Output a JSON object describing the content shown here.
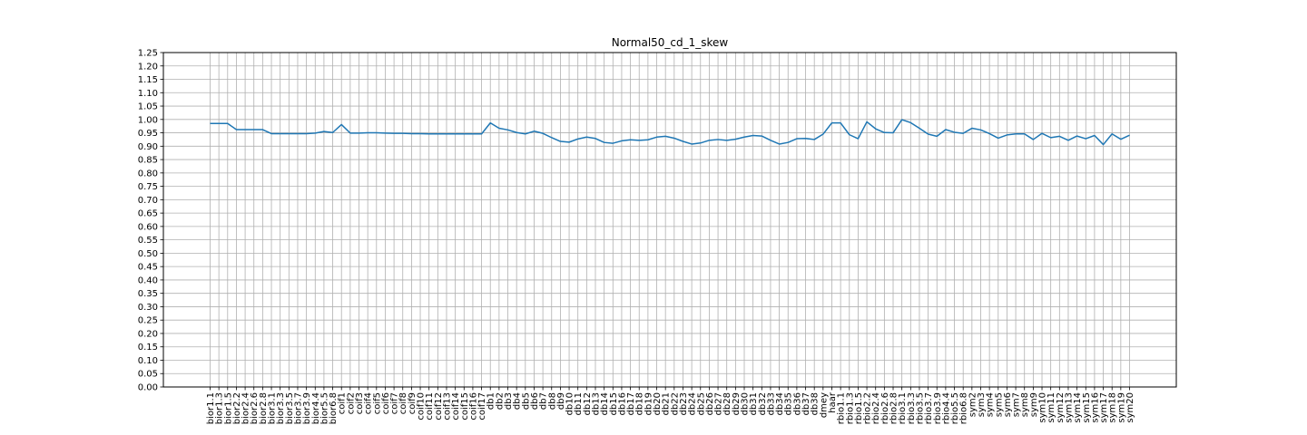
{
  "chart_data": {
    "type": "line",
    "title": "Normal50_cd_1_skew",
    "xlabel": "",
    "ylabel": "",
    "ylim": [
      0,
      1.25
    ],
    "yticks": [
      "0.00",
      "0.05",
      "0.10",
      "0.15",
      "0.20",
      "0.25",
      "0.30",
      "0.35",
      "0.40",
      "0.45",
      "0.50",
      "0.55",
      "0.60",
      "0.65",
      "0.70",
      "0.75",
      "0.80",
      "0.85",
      "0.90",
      "0.95",
      "1.00",
      "1.05",
      "1.10",
      "1.15",
      "1.20",
      "1.25"
    ],
    "grid": true,
    "line_color": "#1f77b4",
    "categories": [
      "bior1.1",
      "bior1.3",
      "bior1.5",
      "bior2.2",
      "bior2.4",
      "bior2.6",
      "bior2.8",
      "bior3.1",
      "bior3.3",
      "bior3.5",
      "bior3.7",
      "bior3.9",
      "bior4.4",
      "bior5.5",
      "bior6.8",
      "coif1",
      "coif2",
      "coif3",
      "coif4",
      "coif5",
      "coif6",
      "coif7",
      "coif8",
      "coif9",
      "coif10",
      "coif11",
      "coif12",
      "coif13",
      "coif14",
      "coif15",
      "coif16",
      "coif17",
      "db1",
      "db2",
      "db3",
      "db4",
      "db5",
      "db6",
      "db7",
      "db8",
      "db9",
      "db10",
      "db11",
      "db12",
      "db13",
      "db14",
      "db15",
      "db16",
      "db17",
      "db18",
      "db19",
      "db20",
      "db21",
      "db22",
      "db23",
      "db24",
      "db25",
      "db26",
      "db27",
      "db28",
      "db29",
      "db30",
      "db31",
      "db32",
      "db33",
      "db34",
      "db35",
      "db36",
      "db37",
      "db38",
      "dmey",
      "haar",
      "rbio1.1",
      "rbio1.3",
      "rbio1.5",
      "rbio2.2",
      "rbio2.4",
      "rbio2.6",
      "rbio2.8",
      "rbio3.1",
      "rbio3.3",
      "rbio3.5",
      "rbio3.7",
      "rbio3.9",
      "rbio4.4",
      "rbio5.5",
      "rbio6.8",
      "sym2",
      "sym3",
      "sym4",
      "sym5",
      "sym6",
      "sym7",
      "sym8",
      "sym9",
      "sym10",
      "sym11",
      "sym12",
      "sym13",
      "sym14",
      "sym15",
      "sym16",
      "sym17",
      "sym18",
      "sym19",
      "sym20"
    ],
    "series": [
      {
        "values": [
          0.985,
          0.985,
          0.985,
          0.962,
          0.962,
          0.962,
          0.962,
          0.947,
          0.947,
          0.947,
          0.947,
          0.947,
          0.949,
          0.955,
          0.951,
          0.981,
          0.949,
          0.949,
          0.95,
          0.95,
          0.949,
          0.948,
          0.948,
          0.947,
          0.947,
          0.946,
          0.946,
          0.946,
          0.946,
          0.946,
          0.946,
          0.946,
          0.987,
          0.967,
          0.961,
          0.951,
          0.946,
          0.956,
          0.948,
          0.932,
          0.918,
          0.915,
          0.927,
          0.934,
          0.929,
          0.914,
          0.911,
          0.92,
          0.924,
          0.922,
          0.924,
          0.934,
          0.937,
          0.93,
          0.918,
          0.908,
          0.912,
          0.922,
          0.925,
          0.922,
          0.926,
          0.934,
          0.94,
          0.938,
          0.922,
          0.908,
          0.914,
          0.928,
          0.929,
          0.925,
          0.945,
          0.987,
          0.987,
          0.943,
          0.928,
          0.991,
          0.965,
          0.951,
          0.95,
          0.999,
          0.988,
          0.967,
          0.945,
          0.937,
          0.962,
          0.952,
          0.948,
          0.967,
          0.961,
          0.947,
          0.93,
          0.942,
          0.946,
          0.946,
          0.925,
          0.948,
          0.932,
          0.937,
          0.922,
          0.938,
          0.928,
          0.94,
          0.906,
          0.946,
          0.926,
          0.941
        ]
      }
    ]
  }
}
